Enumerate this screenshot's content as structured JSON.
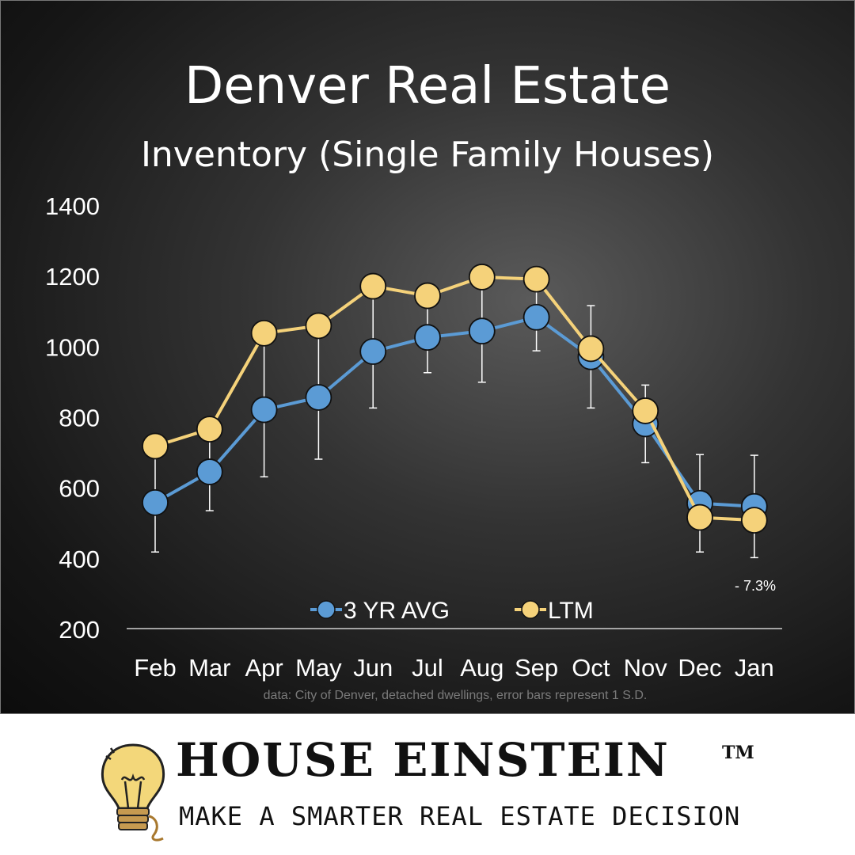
{
  "header": {
    "title": "Denver Real Estate",
    "subtitle": "Inventory (Single Family Houses)"
  },
  "chart_data": {
    "type": "line",
    "categories": [
      "Feb",
      "Mar",
      "Apr",
      "May",
      "Jun",
      "Jul",
      "Aug",
      "Sep",
      "Oct",
      "Nov",
      "Dec",
      "Jan"
    ],
    "ylim": [
      200,
      1400
    ],
    "yticks": [
      200,
      400,
      600,
      800,
      1000,
      1200,
      1400
    ],
    "grid": false,
    "legend_position": "bottom",
    "series": [
      {
        "name": "3 YR AVG",
        "color": "#5b9bd5",
        "values": [
          557,
          644,
          820,
          855,
          985,
          1025,
          1043,
          1082,
          970,
          780,
          555,
          546
        ],
        "error": [
          140,
          110,
          190,
          175,
          160,
          100,
          145,
          95,
          145,
          110,
          138,
          145
        ]
      },
      {
        "name": "LTM",
        "color": "#f5d27a",
        "values": [
          717,
          765,
          1037,
          1058,
          1170,
          1143,
          1196,
          1190,
          993,
          817,
          515,
          507
        ]
      }
    ],
    "annotation": "- 7.3%",
    "source_note": "data: City of Denver, detached dwellings, error bars represent 1 S.D."
  },
  "footer": {
    "brand": "HOUSE EINSTEIN",
    "trademark": "TM",
    "tagline": "MAKE A SMARTER REAL ESTATE DECISION"
  }
}
